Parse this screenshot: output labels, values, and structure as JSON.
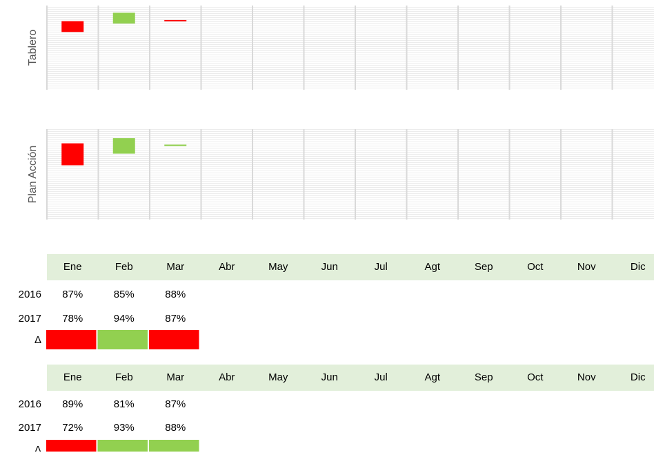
{
  "chart_data": [
    {
      "type": "range-bar",
      "y_label": "Tablero",
      "delta_label": "Δ",
      "categories": [
        "Ene",
        "Feb",
        "Mar",
        "Abr",
        "May",
        "Jun",
        "Jul",
        "Agt",
        "Sep",
        "Oct",
        "Nov",
        "Dic"
      ],
      "series": [
        {
          "name": "2016",
          "values": [
            87,
            85,
            88,
            null,
            null,
            null,
            null,
            null,
            null,
            null,
            null,
            null
          ],
          "value_labels": [
            "87%",
            "85%",
            "88%",
            null,
            null,
            null,
            null,
            null,
            null,
            null,
            null,
            null
          ]
        },
        {
          "name": "2017",
          "values": [
            78,
            94,
            87,
            null,
            null,
            null,
            null,
            null,
            null,
            null,
            null,
            null
          ],
          "value_labels": [
            "78%",
            "94%",
            "87%",
            null,
            null,
            null,
            null,
            null,
            null,
            null,
            null,
            null
          ]
        }
      ],
      "ylim": [
        30,
        100
      ],
      "up_color": "#92d050",
      "down_color": "#ff0000",
      "header_color": "#e2efda"
    },
    {
      "type": "range-bar",
      "y_label": "Plan Acción",
      "delta_label": "Δ",
      "categories": [
        "Ene",
        "Feb",
        "Mar",
        "Abr",
        "May",
        "Jun",
        "Jul",
        "Agt",
        "Sep",
        "Oct",
        "Nov",
        "Dic"
      ],
      "series": [
        {
          "name": "2016",
          "values": [
            89,
            81,
            87,
            null,
            null,
            null,
            null,
            null,
            null,
            null,
            null,
            null
          ],
          "value_labels": [
            "89%",
            "81%",
            "87%",
            null,
            null,
            null,
            null,
            null,
            null,
            null,
            null,
            null
          ]
        },
        {
          "name": "2017",
          "values": [
            72,
            93,
            88,
            null,
            null,
            null,
            null,
            null,
            null,
            null,
            null,
            null
          ],
          "value_labels": [
            "72%",
            "93%",
            "88%",
            null,
            null,
            null,
            null,
            null,
            null,
            null,
            null,
            null
          ]
        }
      ],
      "ylim": [
        30,
        100
      ],
      "up_color": "#92d050",
      "down_color": "#ff0000",
      "header_color": "#e2efda"
    }
  ]
}
